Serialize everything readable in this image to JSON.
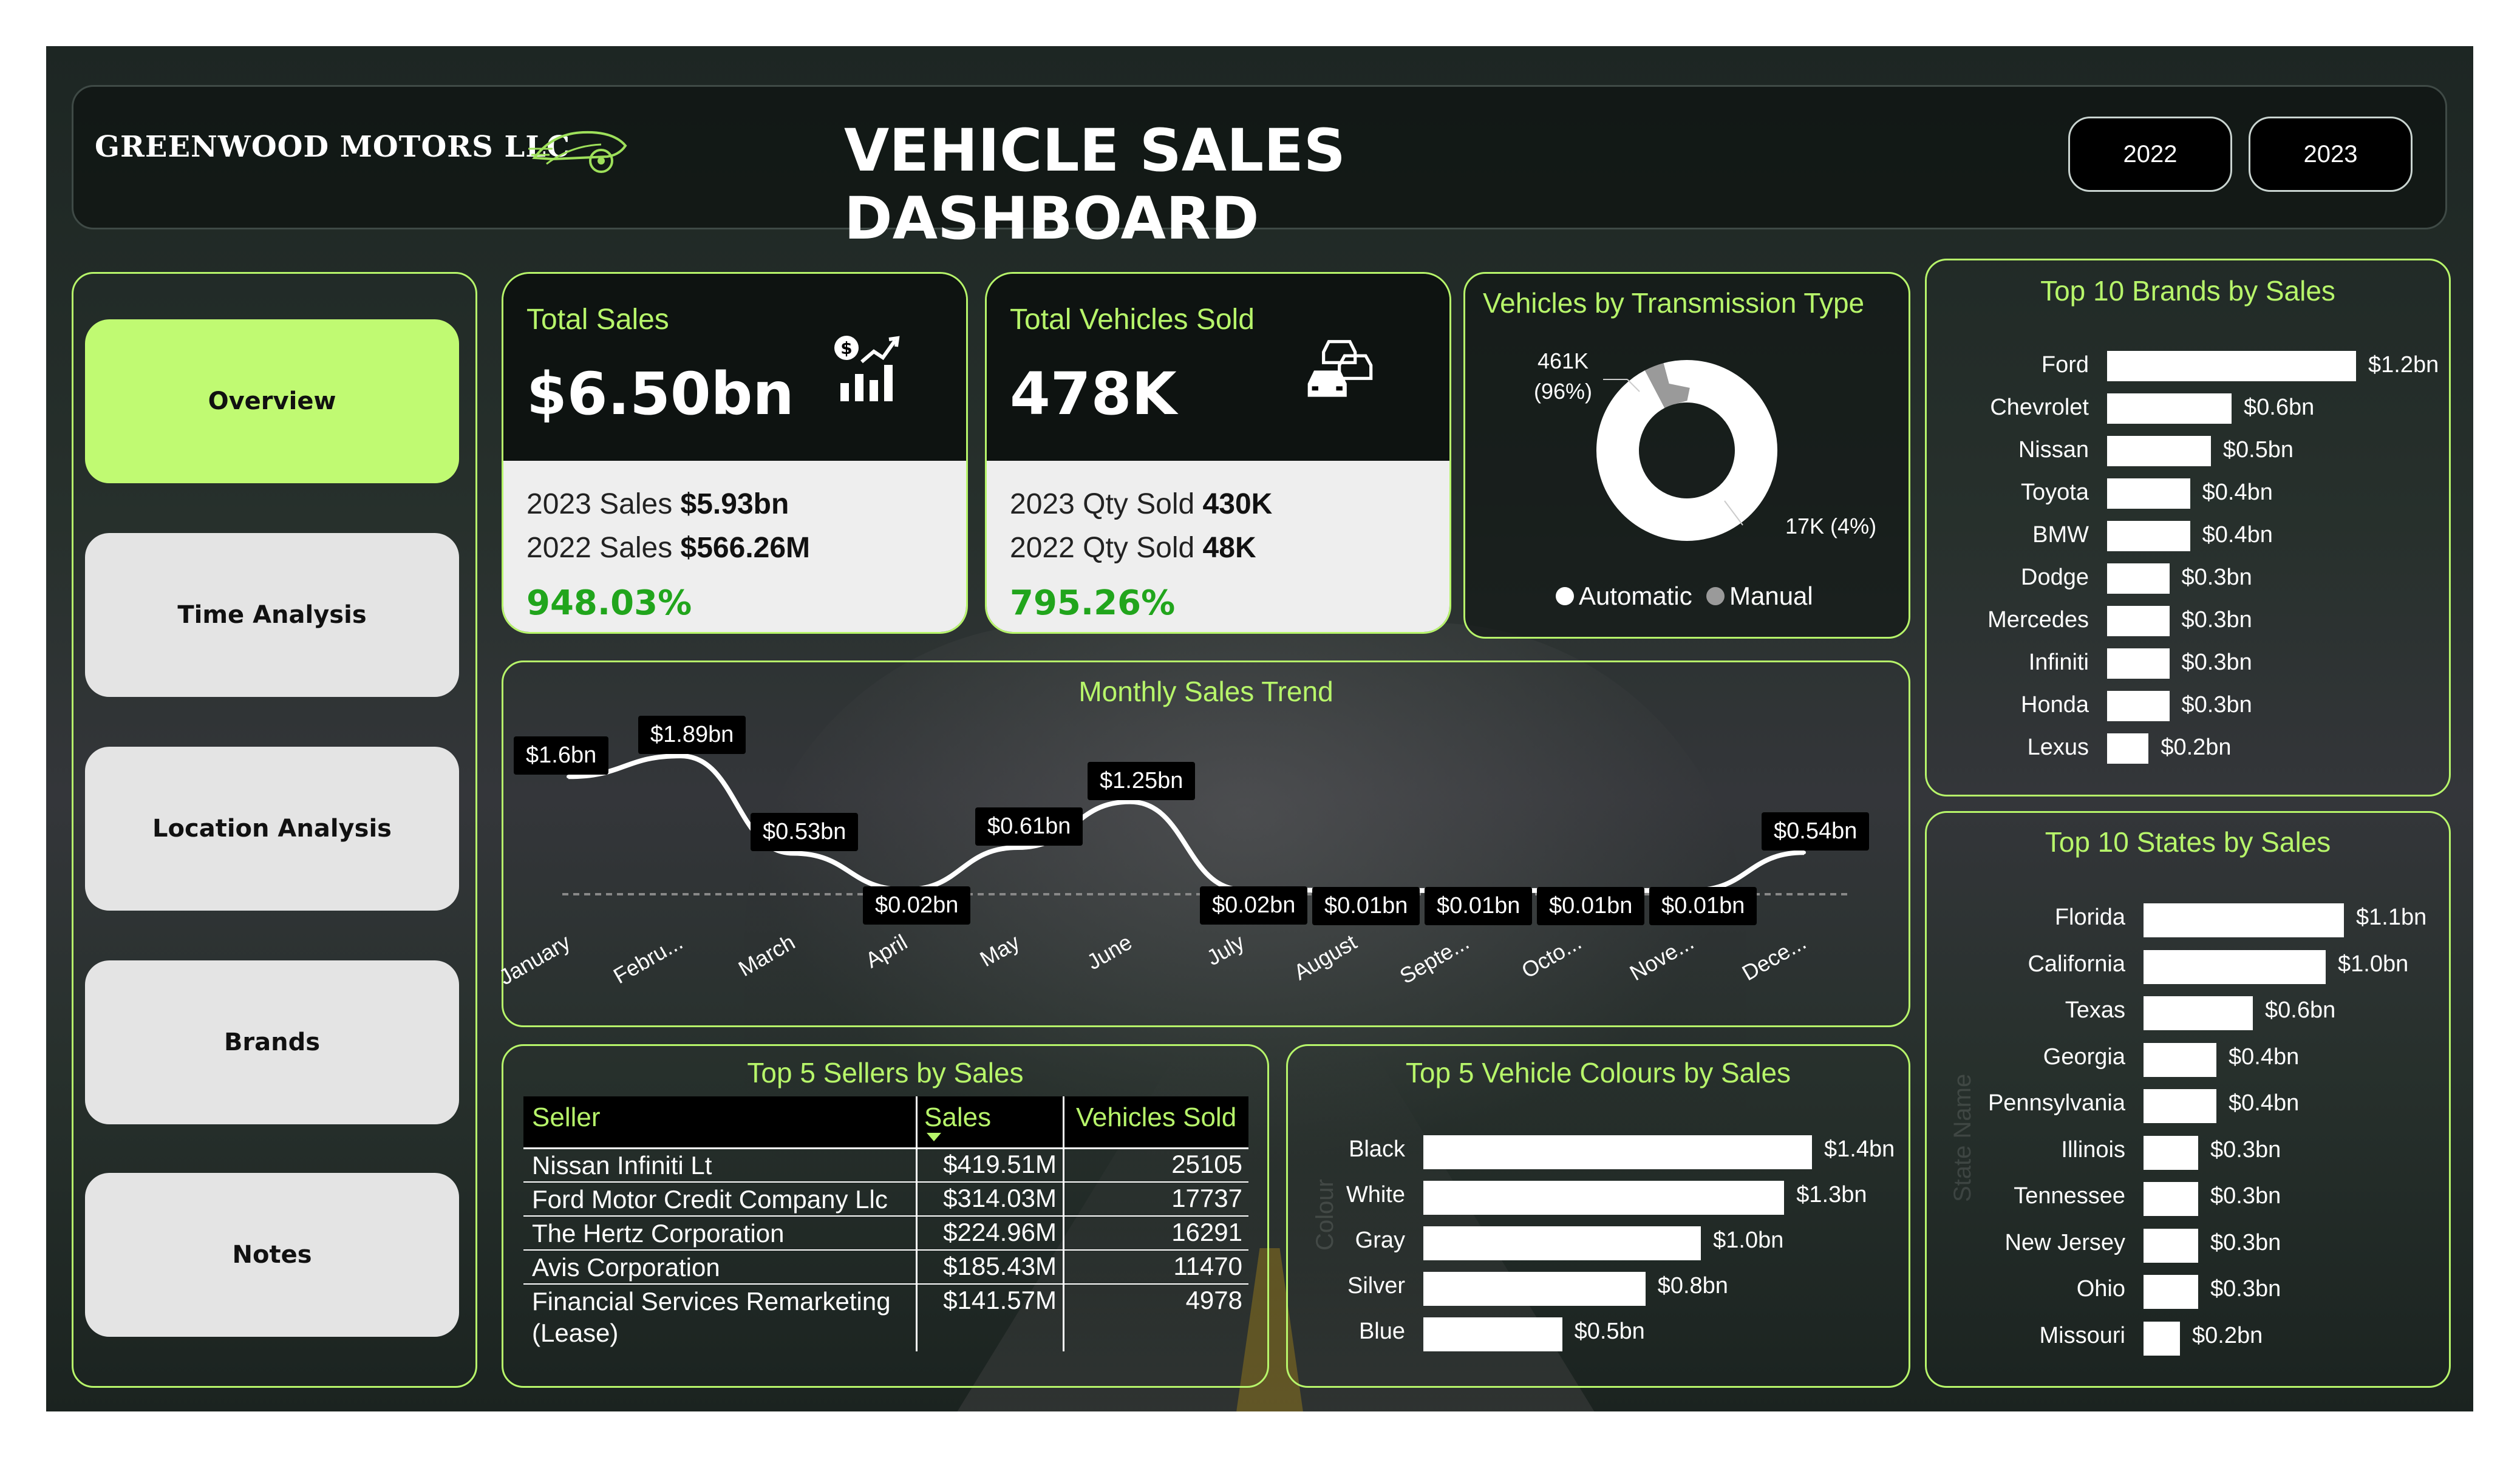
{
  "header": {
    "company": "GREENWOOD MOTORS LLC",
    "title": "VEHICLE SALES DASHBOARD",
    "year_buttons": [
      "2022",
      "2023"
    ]
  },
  "nav": {
    "items": [
      {
        "label": "Overview",
        "active": true
      },
      {
        "label": "Time Analysis",
        "active": false
      },
      {
        "label": "Location Analysis",
        "active": false
      },
      {
        "label": "Brands",
        "active": false
      },
      {
        "label": "Notes",
        "active": false
      }
    ]
  },
  "kpi_sales": {
    "label": "Total Sales",
    "value": "$6.50bn",
    "icon": "money-chart-icon",
    "line1_label": "2023 Sales",
    "line1_value": "$5.93bn",
    "line2_label": "2022 Sales",
    "line2_value": "$566.26M",
    "pct": "948.03%"
  },
  "kpi_vehicles": {
    "label": "Total Vehicles Sold",
    "value": "478K",
    "icon": "cars-icon",
    "line1_label": "2023 Qty Sold",
    "line1_value": "430K",
    "line2_label": "2022 Qty Sold",
    "line2_value": "48K",
    "pct": "795.26%"
  },
  "colors": {
    "accent": "#b7f56a",
    "nav_active": "#c0fa72",
    "positive": "#21a51c",
    "automatic": "#ffffff",
    "manual": "#9a9a9a"
  },
  "chart_data": [
    {
      "type": "pie",
      "title": "Vehicles by Transmission Type",
      "labels": [
        "Automatic",
        "Manual"
      ],
      "values": [
        461,
        17
      ],
      "data_labels": [
        "461K\n(96%)",
        "17K (4%)"
      ],
      "legend": "bottom"
    },
    {
      "type": "line",
      "title": "Monthly Sales Trend",
      "categories": [
        "January",
        "Febru...",
        "March",
        "April",
        "May",
        "June",
        "July",
        "August",
        "Septe...",
        "Octo...",
        "Nove...",
        "Dece..."
      ],
      "values": [
        1.6,
        1.89,
        0.53,
        0.02,
        0.61,
        1.25,
        0.02,
        0.01,
        0.01,
        0.01,
        0.01,
        0.54
      ],
      "data_labels": [
        "$1.6bn",
        "$1.89bn",
        "$0.53bn",
        "$0.02bn",
        "$0.61bn",
        "$1.25bn",
        "$0.02bn",
        "$0.01bn",
        "$0.01bn",
        "$0.01bn",
        "$0.01bn",
        "$0.54bn"
      ],
      "unit": "$bn"
    },
    {
      "type": "bar",
      "title": "Top 10 Brands by Sales",
      "categories": [
        "Ford",
        "Chevrolet",
        "Nissan",
        "Toyota",
        "BMW",
        "Dodge",
        "Mercedes",
        "Infiniti",
        "Honda",
        "Lexus"
      ],
      "values": [
        1.2,
        0.6,
        0.5,
        0.4,
        0.4,
        0.3,
        0.3,
        0.3,
        0.3,
        0.2
      ],
      "data_labels": [
        "$1.2bn",
        "$0.6bn",
        "$0.5bn",
        "$0.4bn",
        "$0.4bn",
        "$0.3bn",
        "$0.3bn",
        "$0.3bn",
        "$0.3bn",
        "$0.2bn"
      ]
    },
    {
      "type": "bar",
      "title": "Top 10 States by Sales",
      "categories": [
        "Florida",
        "California",
        "Texas",
        "Georgia",
        "Pennsylvania",
        "Illinois",
        "Tennessee",
        "New Jersey",
        "Ohio",
        "Missouri"
      ],
      "values": [
        1.1,
        1.0,
        0.6,
        0.4,
        0.4,
        0.3,
        0.3,
        0.3,
        0.3,
        0.2
      ],
      "data_labels": [
        "$1.1bn",
        "$1.0bn",
        "$0.6bn",
        "$0.4bn",
        "$0.4bn",
        "$0.3bn",
        "$0.3bn",
        "$0.3bn",
        "$0.3bn",
        "$0.2bn"
      ],
      "axis_label": "State Name"
    },
    {
      "type": "bar",
      "title": "Top 5 Vehicle Colours by Sales",
      "categories": [
        "Black",
        "White",
        "Gray",
        "Silver",
        "Blue"
      ],
      "values": [
        1.4,
        1.3,
        1.0,
        0.8,
        0.5
      ],
      "data_labels": [
        "$1.4bn",
        "$1.3bn",
        "$1.0bn",
        "$0.8bn",
        "$0.5bn"
      ]
    },
    {
      "type": "table",
      "title": "Top 5 Sellers by Sales",
      "columns": [
        "Seller",
        "Sales",
        "Vehicles Sold"
      ],
      "sort": "Sales",
      "rows": [
        [
          "Nissan Infiniti Lt",
          "$419.51M",
          "25105"
        ],
        [
          "Ford Motor Credit Company Llc",
          "$314.03M",
          "17737"
        ],
        [
          "The Hertz Corporation",
          "$224.96M",
          "16291"
        ],
        [
          "Avis Corporation",
          "$185.43M",
          "11470"
        ],
        [
          "Financial Services Remarketing (Lease)",
          "$141.57M",
          "4978"
        ]
      ]
    }
  ]
}
